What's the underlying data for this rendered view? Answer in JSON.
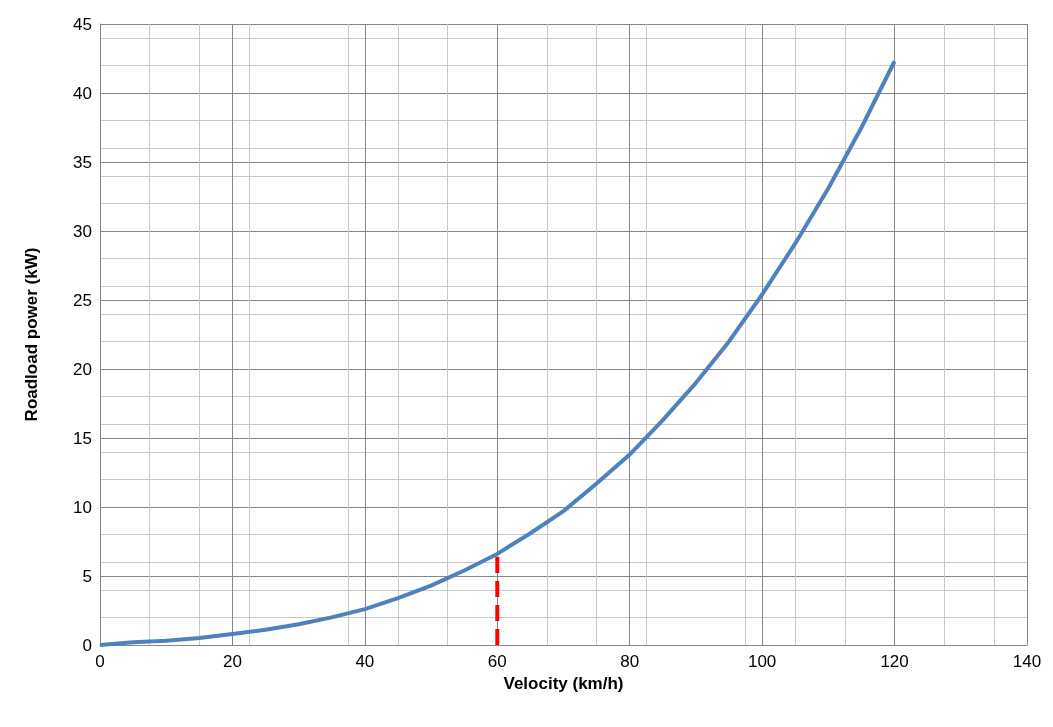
{
  "chart_data": {
    "type": "line",
    "xlabel": "Velocity (km/h)",
    "ylabel": "Roadload power (kW)",
    "series": [
      {
        "color": "#4f81bd",
        "x": [
          0,
          5,
          10,
          15,
          20,
          25,
          30,
          35,
          40,
          45,
          50,
          55,
          60,
          65,
          70,
          75,
          80,
          85,
          90,
          95,
          100,
          105,
          110,
          115,
          120
        ],
        "values": [
          0,
          0.2,
          0.3,
          0.5,
          0.8,
          1.1,
          1.5,
          2,
          2.6,
          3.4,
          4.3,
          5.4,
          6.6,
          8.1,
          9.7,
          11.7,
          13.8,
          16.3,
          19,
          22,
          25.4,
          29.1,
          33.1,
          37.5,
          42.3
        ]
      },
      {
        "color": "#ff0000",
        "line_style": "dashed",
        "x": [
          60,
          60
        ],
        "values": [
          0,
          6.6
        ]
      }
    ],
    "xlim": [
      0,
      140
    ],
    "xticks": [
      0,
      20,
      40,
      60,
      80,
      100,
      120,
      140
    ],
    "ylim": [
      0,
      45
    ],
    "yticks": [
      0,
      5,
      10,
      15,
      20,
      25,
      30,
      35,
      40,
      45
    ],
    "grid": true,
    "marker": "none",
    "line_style": "solid"
  }
}
